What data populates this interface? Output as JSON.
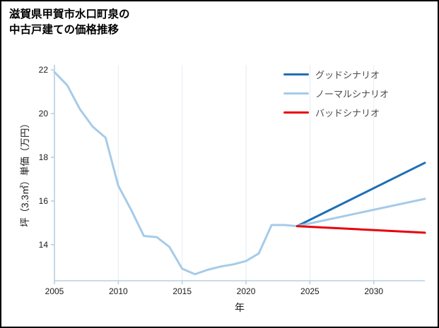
{
  "page": {
    "title_line1": "滋賀県甲賀市水口町泉の",
    "title_line2": "中古戸建ての価格推移"
  },
  "chart_data": {
    "type": "line",
    "title": "滋賀県甲賀市水口町泉の中古戸建ての価格推移",
    "xlabel": "年",
    "ylabel": "坪（3.3㎡）単価（万円）",
    "xlim": [
      2005,
      2034
    ],
    "ylim": [
      12.35,
      22.23
    ],
    "x_ticks": [
      2005,
      2010,
      2015,
      2020,
      2025,
      2030
    ],
    "y_ticks": [
      14,
      16,
      18,
      20,
      22
    ],
    "grid": "vertical-only",
    "legend_position": "top-right",
    "colors": {
      "axis": "#b8cfe6",
      "grid": "#e4edf6",
      "tick_label": "#1a1a1a",
      "good": "#1f6fb5",
      "normal": "#a6cbe8",
      "bad": "#e8000b"
    },
    "legend": [
      {
        "label": "グッドシナリオ",
        "color": "#1f6fb5"
      },
      {
        "label": "ノーマルシナリオ",
        "color": "#a6cbe8"
      },
      {
        "label": "バッドシナリオ",
        "color": "#e8000b"
      }
    ],
    "series": [
      {
        "name": "history",
        "color": "#a6cbe8",
        "x": [
          2005,
          2006,
          2007,
          2008,
          2009,
          2010,
          2011,
          2012,
          2013,
          2014,
          2015,
          2016,
          2017,
          2018,
          2019,
          2020,
          2021,
          2022,
          2023,
          2024
        ],
        "values": [
          21.9,
          21.3,
          20.2,
          19.4,
          18.9,
          16.7,
          15.6,
          14.4,
          14.35,
          13.9,
          12.9,
          12.65,
          12.85,
          13.0,
          13.1,
          13.25,
          13.6,
          14.9,
          14.9,
          14.85
        ]
      },
      {
        "name": "グッドシナリオ",
        "color": "#1f6fb5",
        "x": [
          2024,
          2034
        ],
        "values": [
          14.85,
          17.75
        ]
      },
      {
        "name": "ノーマルシナリオ",
        "color": "#a6cbe8",
        "x": [
          2024,
          2034
        ],
        "values": [
          14.85,
          16.1
        ]
      },
      {
        "name": "バッドシナリオ",
        "color": "#e8000b",
        "x": [
          2024,
          2034
        ],
        "values": [
          14.85,
          14.55
        ]
      }
    ]
  }
}
